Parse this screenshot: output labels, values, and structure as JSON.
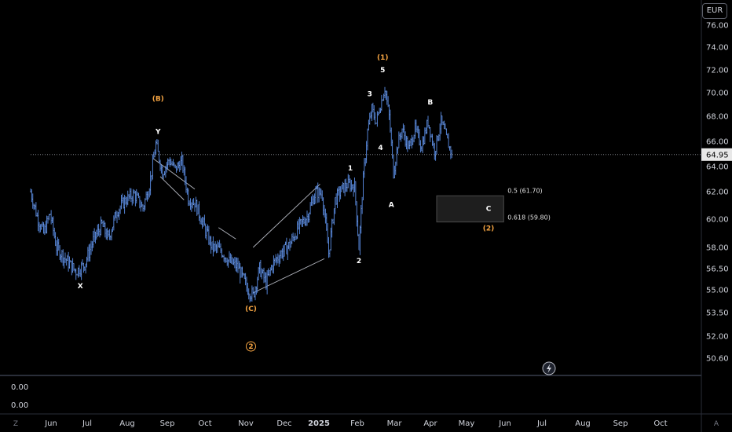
{
  "currency": "EUR",
  "last_price": "64.95",
  "indicator_values": [
    "0.00",
    "0.00"
  ],
  "axis_buttons": {
    "left": "Z",
    "right": "A"
  },
  "chart_data": {
    "type": "candlestick",
    "y_ticks": [
      "76.00",
      "74.00",
      "72.00",
      "70.00",
      "68.00",
      "66.00",
      "64.00",
      "62.00",
      "60.00",
      "58.00",
      "56.50",
      "55.00",
      "53.50",
      "52.00",
      "50.60"
    ],
    "y_tick_values": [
      76,
      74,
      72,
      70,
      68,
      66,
      64,
      62,
      60,
      58,
      56.5,
      55,
      53.5,
      52,
      50.6
    ],
    "x_ticks": [
      "Jun",
      "Jul",
      "Aug",
      "Sep",
      "Oct",
      "Nov",
      "Dec",
      "2025",
      "Feb",
      "Mar",
      "Apr",
      "May",
      "Jun",
      "Jul",
      "Aug",
      "Sep",
      "Oct"
    ],
    "price_path": [
      {
        "t": 0,
        "p": 62.0
      },
      {
        "t": 3,
        "p": 60.2
      },
      {
        "t": 6,
        "p": 59.0
      },
      {
        "t": 9,
        "p": 60.4
      },
      {
        "t": 12,
        "p": 58.0
      },
      {
        "t": 17,
        "p": 57.0
      },
      {
        "t": 21,
        "p": 56.3
      },
      {
        "t": 25,
        "p": 56.8
      },
      {
        "t": 29,
        "p": 58.5
      },
      {
        "t": 33,
        "p": 59.6
      },
      {
        "t": 36,
        "p": 58.6
      },
      {
        "t": 40,
        "p": 60.6
      },
      {
        "t": 44,
        "p": 61.4
      },
      {
        "t": 48,
        "p": 61.8
      },
      {
        "t": 52,
        "p": 60.8
      },
      {
        "t": 55,
        "p": 62.5
      },
      {
        "t": 58,
        "p": 65.8
      },
      {
        "t": 61,
        "p": 63.5
      },
      {
        "t": 64,
        "p": 64.5
      },
      {
        "t": 67,
        "p": 63.8
      },
      {
        "t": 70,
        "p": 64.4
      },
      {
        "t": 73,
        "p": 61.5
      },
      {
        "t": 76,
        "p": 61.2
      },
      {
        "t": 80,
        "p": 59.6
      },
      {
        "t": 84,
        "p": 58.0
      },
      {
        "t": 88,
        "p": 57.8
      },
      {
        "t": 92,
        "p": 57.0
      },
      {
        "t": 96,
        "p": 56.6
      },
      {
        "t": 100,
        "p": 55.2
      },
      {
        "t": 103,
        "p": 54.6
      },
      {
        "t": 106,
        "p": 56.5
      },
      {
        "t": 109,
        "p": 55.5
      },
      {
        "t": 112,
        "p": 56.8
      },
      {
        "t": 116,
        "p": 57.6
      },
      {
        "t": 120,
        "p": 58.2
      },
      {
        "t": 124,
        "p": 59.4
      },
      {
        "t": 128,
        "p": 60.2
      },
      {
        "t": 132,
        "p": 62.0
      },
      {
        "t": 135,
        "p": 61.8
      },
      {
        "t": 138,
        "p": 57.6
      },
      {
        "t": 141,
        "p": 61.4
      },
      {
        "t": 144,
        "p": 62.2
      },
      {
        "t": 147,
        "p": 62.6
      },
      {
        "t": 150,
        "p": 62.4
      },
      {
        "t": 152,
        "p": 58.0
      },
      {
        "t": 154,
        "p": 63.0
      },
      {
        "t": 156,
        "p": 66.8
      },
      {
        "t": 158,
        "p": 68.6
      },
      {
        "t": 160,
        "p": 67.5
      },
      {
        "t": 162,
        "p": 69.0
      },
      {
        "t": 164,
        "p": 70.4
      },
      {
        "t": 166,
        "p": 68.0
      },
      {
        "t": 168,
        "p": 63.5
      },
      {
        "t": 170,
        "p": 65.8
      },
      {
        "t": 172,
        "p": 67.0
      },
      {
        "t": 175,
        "p": 65.4
      },
      {
        "t": 178,
        "p": 67.0
      },
      {
        "t": 181,
        "p": 65.6
      },
      {
        "t": 184,
        "p": 67.6
      },
      {
        "t": 187,
        "p": 65.2
      },
      {
        "t": 190,
        "p": 67.6
      },
      {
        "t": 193,
        "p": 66.0
      },
      {
        "t": 195,
        "p": 64.95
      }
    ],
    "wave_labels": [
      {
        "text": "X",
        "t": 23,
        "p": 55.1,
        "color": "#ffffff"
      },
      {
        "text": "(B)",
        "t": 59,
        "p": 69.3,
        "color": "#f5a442"
      },
      {
        "text": "Y",
        "t": 59,
        "p": 66.6,
        "color": "#ffffff"
      },
      {
        "text": "(C)",
        "t": 102,
        "p": 53.6,
        "color": "#f5a442"
      },
      {
        "text": "1",
        "t": 148,
        "p": 63.7,
        "color": "#ffffff"
      },
      {
        "text": "2",
        "t": 152,
        "p": 56.9,
        "color": "#ffffff"
      },
      {
        "text": "3",
        "t": 157,
        "p": 69.7,
        "color": "#ffffff"
      },
      {
        "text": "4",
        "t": 162,
        "p": 65.3,
        "color": "#ffffff"
      },
      {
        "text": "5",
        "t": 163,
        "p": 71.8,
        "color": "#ffffff"
      },
      {
        "text": "(1)",
        "t": 163,
        "p": 72.9,
        "color": "#f5a442"
      },
      {
        "text": "A",
        "t": 167,
        "p": 60.9,
        "color": "#ffffff"
      },
      {
        "text": "B",
        "t": 185,
        "p": 69.0,
        "color": "#ffffff"
      },
      {
        "text": "C",
        "t": 212,
        "p": 60.6,
        "color": "#ffffff"
      },
      {
        "text": "(2)",
        "t": 212,
        "p": 59.2,
        "color": "#f5a442"
      }
    ],
    "wave_2_circle": {
      "text": "2",
      "t": 102,
      "p": 51.2
    },
    "channels": [
      {
        "from": {
          "t": 57,
          "p": 64.6
        },
        "to": {
          "t": 76,
          "p": 62.2
        }
      },
      {
        "from": {
          "t": 60,
          "p": 63.2
        },
        "to": {
          "t": 71,
          "p": 61.4
        }
      },
      {
        "from": {
          "t": 87,
          "p": 59.4
        },
        "to": {
          "t": 95,
          "p": 58.6
        }
      },
      {
        "from": {
          "t": 103,
          "p": 58.0
        },
        "to": {
          "t": 134,
          "p": 62.6
        }
      },
      {
        "from": {
          "t": 103,
          "p": 54.8
        },
        "to": {
          "t": 136,
          "p": 57.2
        }
      }
    ],
    "fib_zone": {
      "from_t": 188,
      "to_t": 219,
      "top": 61.7,
      "bottom": 59.8,
      "labels": [
        "0.5 (61.70)",
        "0.618 (59.80)"
      ]
    }
  }
}
